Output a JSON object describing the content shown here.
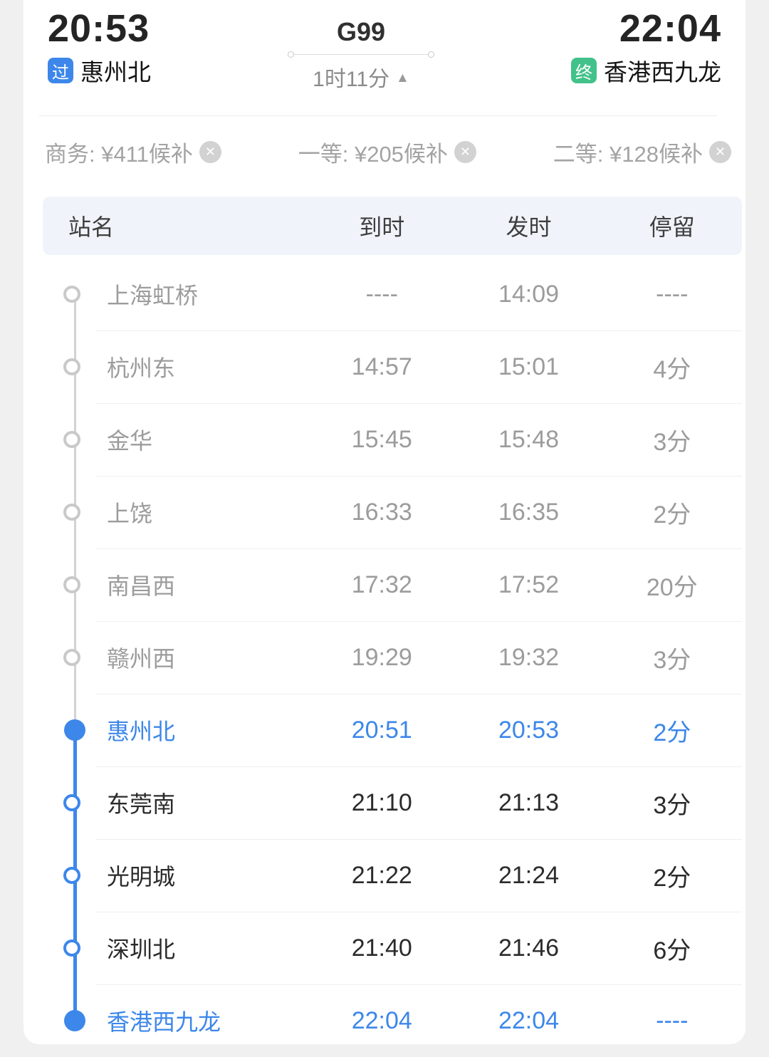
{
  "colors": {
    "accent_blue": "#3d87ea",
    "tag_green": "#42c28a",
    "past_gray": "#9c9c9c",
    "future_dark": "#2b2b2b",
    "header_band": "#f0f4fa"
  },
  "icons": {
    "close": "✕",
    "collapse": "▲"
  },
  "trip_header": {
    "departure_time": "20:53",
    "departure_tag": "过",
    "departure_station": "惠州北",
    "train_no": "G99",
    "duration": "1时11分",
    "arrival_time": "22:04",
    "arrival_tag": "终",
    "arrival_station": "香港西九龙"
  },
  "fares": [
    {
      "label": "商务: ¥411候补"
    },
    {
      "label": "一等: ¥205候补"
    },
    {
      "label": "二等: ¥128候补"
    }
  ],
  "schedule": {
    "columns": [
      "站名",
      "到时",
      "发时",
      "停留"
    ],
    "rows": [
      {
        "station": "上海虹桥",
        "arrive": "----",
        "depart": "14:09",
        "stop": "----",
        "state": "past"
      },
      {
        "station": "杭州东",
        "arrive": "14:57",
        "depart": "15:01",
        "stop": "4分",
        "state": "past"
      },
      {
        "station": "金华",
        "arrive": "15:45",
        "depart": "15:48",
        "stop": "3分",
        "state": "past"
      },
      {
        "station": "上饶",
        "arrive": "16:33",
        "depart": "16:35",
        "stop": "2分",
        "state": "past"
      },
      {
        "station": "南昌西",
        "arrive": "17:32",
        "depart": "17:52",
        "stop": "20分",
        "state": "past"
      },
      {
        "station": "赣州西",
        "arrive": "19:29",
        "depart": "19:32",
        "stop": "3分",
        "state": "past"
      },
      {
        "station": "惠州北",
        "arrive": "20:51",
        "depart": "20:53",
        "stop": "2分",
        "state": "current"
      },
      {
        "station": "东莞南",
        "arrive": "21:10",
        "depart": "21:13",
        "stop": "3分",
        "state": "future"
      },
      {
        "station": "光明城",
        "arrive": "21:22",
        "depart": "21:24",
        "stop": "2分",
        "state": "future"
      },
      {
        "station": "深圳北",
        "arrive": "21:40",
        "depart": "21:46",
        "stop": "6分",
        "state": "future"
      },
      {
        "station": "香港西九龙",
        "arrive": "22:04",
        "depart": "22:04",
        "stop": "----",
        "state": "terminal"
      }
    ]
  }
}
